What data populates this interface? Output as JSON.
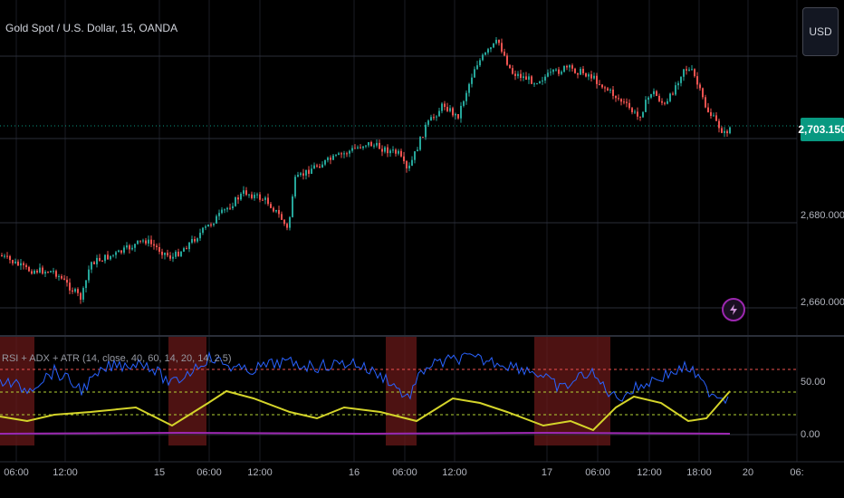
{
  "symbol": {
    "title": "Gold Spot / U.S. Dollar, 15, OANDA"
  },
  "currency_button": {
    "label": "USD"
  },
  "price_axis": {
    "labels": [
      "2,680.000",
      "2,660.000"
    ],
    "last_price": "2,703.150"
  },
  "indicator": {
    "title": "RSI + ADX + ATR (14, close, 40, 60, 14, 20, 14, 2.5)",
    "axis_labels": [
      "50.00",
      "0.00"
    ]
  },
  "time_axis": {
    "labels": [
      "06:00",
      "12:00",
      "15",
      "06:00",
      "12:00",
      "16",
      "06:00",
      "12:00",
      "17",
      "06:00",
      "12:00",
      "18:00",
      "20",
      "06:"
    ]
  },
  "colors": {
    "up": "#26a69a",
    "down": "#ef5350",
    "rsi": "#2962ff",
    "adx": "#d4d42a",
    "atr": "#9c27b0",
    "highlight": "#6e1a1a",
    "last_price": "#089981"
  },
  "icons": {
    "alert": "lightning-icon"
  }
}
